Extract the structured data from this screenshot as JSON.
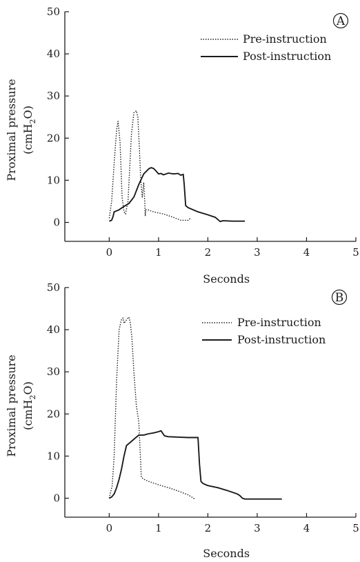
{
  "chart_data": [
    {
      "type": "line",
      "panel_label": "A",
      "xlabel": "Seconds",
      "ylabel_line1": "Proximal pressure",
      "ylabel_line2": "(cmH",
      "ylabel_sub": "2",
      "ylabel_line2_end": "O)",
      "xlim": [
        -0.9,
        5
      ],
      "ylim": [
        -4.5,
        50
      ],
      "xticks": [
        0,
        1,
        2,
        3,
        4,
        5
      ],
      "yticks": [
        0,
        10,
        20,
        30,
        40,
        50
      ],
      "grid": false,
      "legend_position": "top-right",
      "series": [
        {
          "name": "Pre-instruction",
          "style": "dotted",
          "x": [
            0.0,
            0.05,
            0.1,
            0.15,
            0.18,
            0.22,
            0.26,
            0.3,
            0.33,
            0.38,
            0.42,
            0.45,
            0.5,
            0.55,
            0.58,
            0.61,
            0.64,
            0.67,
            0.7,
            0.72,
            0.73,
            0.74,
            0.78,
            0.9,
            1.1,
            1.3,
            1.45,
            1.5,
            1.6,
            1.65
          ],
          "y": [
            1.0,
            5.0,
            14.0,
            22.0,
            24.0,
            19.0,
            6.0,
            2.5,
            2.0,
            5.0,
            14.0,
            21.0,
            26.0,
            26.5,
            25.0,
            18.0,
            10.0,
            6.0,
            9.5,
            5.0,
            1.5,
            3.0,
            3.0,
            2.5,
            2.0,
            1.2,
            0.5,
            0.5,
            0.5,
            1.0
          ]
        },
        {
          "name": "Post-instruction",
          "style": "solid",
          "x": [
            0.0,
            0.05,
            0.08,
            0.1,
            0.2,
            0.3,
            0.4,
            0.5,
            0.55,
            0.6,
            0.7,
            0.8,
            0.85,
            0.9,
            0.95,
            1.0,
            1.05,
            1.1,
            1.2,
            1.3,
            1.4,
            1.45,
            1.5,
            1.52,
            1.55,
            1.6,
            1.8,
            2.0,
            2.15,
            2.2,
            2.25,
            2.3,
            2.5,
            2.75
          ],
          "y": [
            0.3,
            0.5,
            1.5,
            2.5,
            3.0,
            3.8,
            4.5,
            6.0,
            7.5,
            9.0,
            11.5,
            12.7,
            13.0,
            12.8,
            12.2,
            11.5,
            11.6,
            11.3,
            11.7,
            11.5,
            11.6,
            11.2,
            11.4,
            9.0,
            4.0,
            3.5,
            2.5,
            1.8,
            1.2,
            0.7,
            0.2,
            0.4,
            0.3,
            0.3
          ]
        }
      ]
    },
    {
      "type": "line",
      "panel_label": "B",
      "xlabel": "Seconds",
      "ylabel_line1": "Proximal pressure",
      "ylabel_line2": "(cmH",
      "ylabel_sub": "2",
      "ylabel_line2_end": "O)",
      "xlim": [
        -0.9,
        5
      ],
      "ylim": [
        -4.5,
        50
      ],
      "xticks": [
        0,
        1,
        2,
        3,
        4,
        5
      ],
      "yticks": [
        0,
        10,
        20,
        30,
        40,
        50
      ],
      "grid": false,
      "legend_position": "top-right",
      "series": [
        {
          "name": "Pre-instruction",
          "style": "dotted",
          "x": [
            0.0,
            0.03,
            0.06,
            0.1,
            0.15,
            0.2,
            0.25,
            0.28,
            0.3,
            0.33,
            0.36,
            0.4,
            0.43,
            0.46,
            0.5,
            0.55,
            0.6,
            0.62,
            0.65,
            0.7,
            0.8,
            1.0,
            1.2,
            1.4,
            1.6,
            1.75
          ],
          "y": [
            0.0,
            1.5,
            3.0,
            10.0,
            28.0,
            40.0,
            42.5,
            42.8,
            41.5,
            42.0,
            42.5,
            43.0,
            41.5,
            38.0,
            30.0,
            22.0,
            18.0,
            13.0,
            5.0,
            4.5,
            4.0,
            3.2,
            2.5,
            1.7,
            0.8,
            -0.3
          ]
        },
        {
          "name": "Post-instruction",
          "style": "solid",
          "x": [
            0.0,
            0.05,
            0.1,
            0.15,
            0.2,
            0.25,
            0.3,
            0.35,
            0.4,
            0.5,
            0.6,
            0.7,
            0.8,
            0.9,
            1.0,
            1.05,
            1.08,
            1.12,
            1.2,
            1.4,
            1.6,
            1.8,
            1.83,
            1.86,
            1.9,
            2.0,
            2.2,
            2.4,
            2.6,
            2.65,
            2.7,
            2.75,
            3.0,
            3.5
          ],
          "y": [
            0.0,
            0.3,
            1.0,
            2.5,
            4.5,
            7.0,
            10.0,
            12.5,
            13.0,
            14.0,
            15.0,
            15.0,
            15.3,
            15.5,
            15.8,
            16.0,
            15.5,
            14.8,
            14.6,
            14.5,
            14.4,
            14.4,
            8.0,
            4.0,
            3.5,
            3.0,
            2.5,
            1.8,
            1.0,
            0.6,
            0.0,
            -0.2,
            -0.2,
            -0.2
          ]
        }
      ]
    }
  ]
}
